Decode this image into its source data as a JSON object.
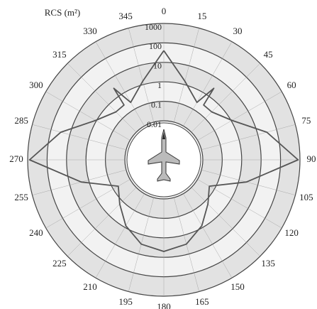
{
  "chart_data": {
    "type": "polar-line",
    "title": "RCS (m²)",
    "theta": [
      0,
      15,
      30,
      35,
      36,
      45,
      60,
      75,
      90,
      105,
      120,
      135,
      150,
      165,
      180,
      195,
      210,
      225,
      240,
      255,
      270,
      285,
      300,
      315,
      324,
      325,
      330,
      345,
      360
    ],
    "values": [
      40,
      1.5,
      0.25,
      3,
      0.3,
      0.3,
      1.1,
      30,
      800,
      2.5,
      0.05,
      0.16,
      0.8,
      3,
      5,
      3,
      0.8,
      0.16,
      0.05,
      2.5,
      800,
      30,
      1.1,
      0.3,
      0.3,
      3,
      0.25,
      1.5,
      40
    ],
    "color": "#555555",
    "rlim": [
      0.01,
      1000
    ],
    "log_r": true,
    "rticks": [
      0.01,
      0.1,
      1,
      10,
      100,
      1000
    ],
    "thetaticks": [
      0,
      15,
      30,
      45,
      60,
      75,
      90,
      105,
      120,
      135,
      150,
      165,
      180,
      195,
      210,
      225,
      240,
      255,
      270,
      285,
      300,
      315,
      330,
      345
    ]
  }
}
